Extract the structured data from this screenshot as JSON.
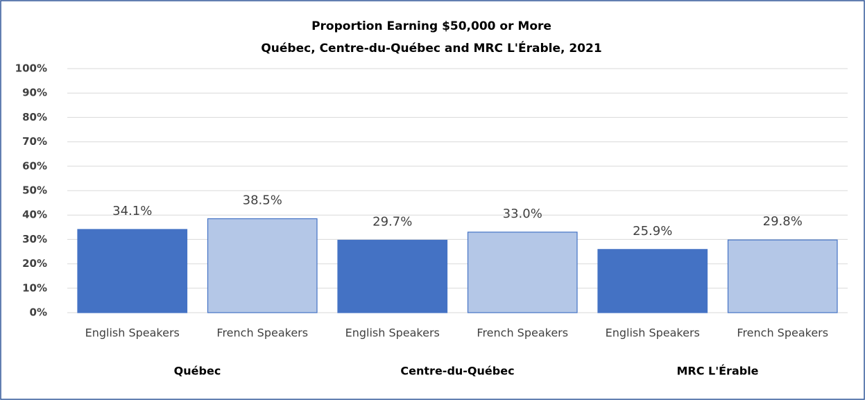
{
  "chart_data": {
    "type": "bar",
    "title": "Proportion Earning $50,000 or More",
    "subtitle": "Québec, Centre-du-Québec and MRC L'Érable, 2021",
    "categories": [
      "English Speakers",
      "French Speakers",
      "English Speakers",
      "French Speakers",
      "English Speakers",
      "French Speakers"
    ],
    "groups": [
      "Québec",
      "Centre-du-Québec",
      "MRC L'Érable"
    ],
    "values": [
      34.1,
      38.5,
      29.7,
      33.0,
      25.9,
      29.8
    ],
    "value_labels": [
      "34.1%",
      "38.5%",
      "29.7%",
      "33.0%",
      "25.9%",
      "29.8%"
    ],
    "colors": [
      "#4472c4",
      "#b4c7e7",
      "#4472c4",
      "#b4c7e7",
      "#4472c4",
      "#b4c7e7"
    ],
    "ylim": [
      0,
      100
    ],
    "yticks": [
      {
        "value": 0,
        "label": "0%"
      },
      {
        "value": 10,
        "label": "10%"
      },
      {
        "value": 20,
        "label": "20%"
      },
      {
        "value": 30,
        "label": "30%"
      },
      {
        "value": 40,
        "label": "40%"
      },
      {
        "value": 50,
        "label": "50%"
      },
      {
        "value": 60,
        "label": "60%"
      },
      {
        "value": 70,
        "label": "70%"
      },
      {
        "value": 80,
        "label": "80%"
      },
      {
        "value": 90,
        "label": "90%"
      },
      {
        "value": 100,
        "label": "100%"
      }
    ],
    "grid": true
  }
}
